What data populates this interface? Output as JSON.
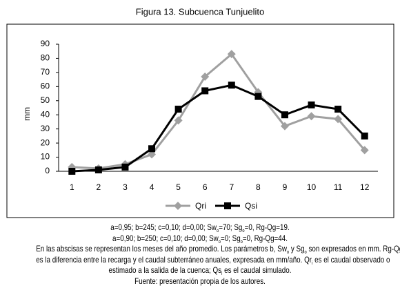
{
  "chart_data": {
    "type": "line",
    "title": "Figura 13. Subcuenca Tunjuelito",
    "y_label": "mm",
    "categories": [
      "1",
      "2",
      "3",
      "4",
      "5",
      "6",
      "7",
      "8",
      "9",
      "10",
      "11",
      "12"
    ],
    "series": [
      {
        "name": "Qri",
        "color": "#a0a0a0",
        "marker": "diamond",
        "values": [
          3,
          2,
          5,
          12,
          36,
          67,
          83,
          56,
          32,
          39,
          37,
          15
        ]
      },
      {
        "name": "Qsi",
        "color": "#000000",
        "marker": "square",
        "values": [
          0,
          1,
          3,
          16,
          44,
          57,
          61,
          53,
          40,
          47,
          44,
          25
        ]
      }
    ],
    "ylim": [
      0,
      90
    ],
    "yticks": [
      0,
      10,
      20,
      30,
      40,
      50,
      60,
      70,
      80,
      90
    ],
    "grid": false,
    "legend": "bottom"
  },
  "caption": {
    "lines": [
      [
        {
          "t": "a=0,95; b=245; c=0,10; d=0,00; Sw"
        },
        {
          "sub": "o"
        },
        {
          "t": "=70; Sg"
        },
        {
          "sub": "o"
        },
        {
          "t": "=0, Rg-Qg=19."
        }
      ],
      [
        {
          "t": "a=0,90; b=250; c=0,10; d=0,00; Sw"
        },
        {
          "sub": "o"
        },
        {
          "t": "=0; Sg"
        },
        {
          "sub": "o"
        },
        {
          "t": "=0, Rg-Qg=44."
        }
      ],
      [
        {
          "t": "En las abscisas se representan los meses del año promedio. Los parámetros b, Sw"
        },
        {
          "sub": "o"
        },
        {
          "t": " y Sg"
        },
        {
          "sub": "o"
        },
        {
          "t": " son expresados en mm. Rg-Qg"
        }
      ],
      [
        {
          "t": "es la diferencia entre la recarga y el caudal subterráneo anuales, expresada en mm/año. Qr"
        },
        {
          "sub": "i"
        },
        {
          "t": " es el caudal observado o"
        }
      ],
      [
        {
          "t": "estimado a la salida de la cuenca; Qs"
        },
        {
          "sub": "i"
        },
        {
          "t": " es el caudal simulado."
        }
      ],
      [
        {
          "t": "Fuente: presentación propia de los autores."
        }
      ]
    ]
  }
}
